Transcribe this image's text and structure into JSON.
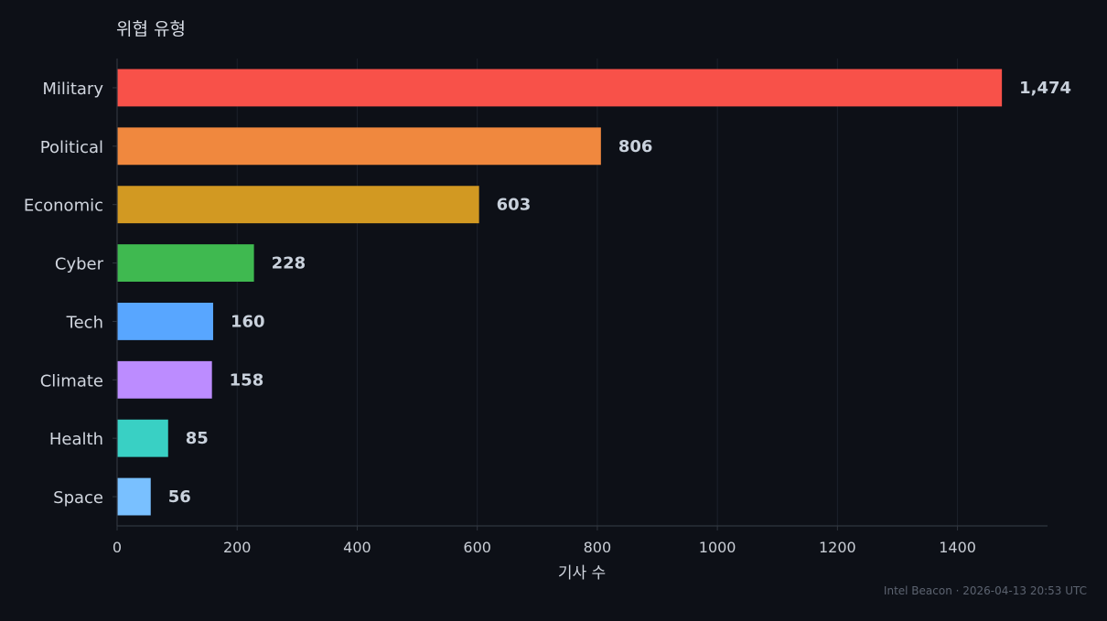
{
  "chart_data": {
    "type": "bar",
    "orientation": "horizontal",
    "title": "위협 유형",
    "xlabel": "기사 수",
    "ylabel": "",
    "categories": [
      "Military",
      "Political",
      "Economic",
      "Cyber",
      "Tech",
      "Climate",
      "Health",
      "Space"
    ],
    "values": [
      1474,
      806,
      603,
      228,
      160,
      158,
      85,
      56
    ],
    "value_labels": [
      "1,474",
      "806",
      "603",
      "228",
      "160",
      "158",
      "85",
      "56"
    ],
    "colors": [
      "#f85149",
      "#f0883e",
      "#d29922",
      "#3fb950",
      "#58a6ff",
      "#bc8cff",
      "#39d0c4",
      "#79c0ff"
    ],
    "xlim": [
      0,
      1550
    ],
    "xticks": [
      0,
      200,
      400,
      600,
      800,
      1000,
      1200,
      1400
    ],
    "xtick_labels": [
      "0",
      "200",
      "400",
      "600",
      "800",
      "1000",
      "1200",
      "1400"
    ],
    "grid": "vertical",
    "legend": "none"
  },
  "footer": {
    "source": "Intel Beacon · 2026-04-13 20:53 UTC"
  },
  "theme": {
    "background": "#0d1017",
    "grid_color": "#1c212b",
    "axis_color": "#30363f"
  }
}
